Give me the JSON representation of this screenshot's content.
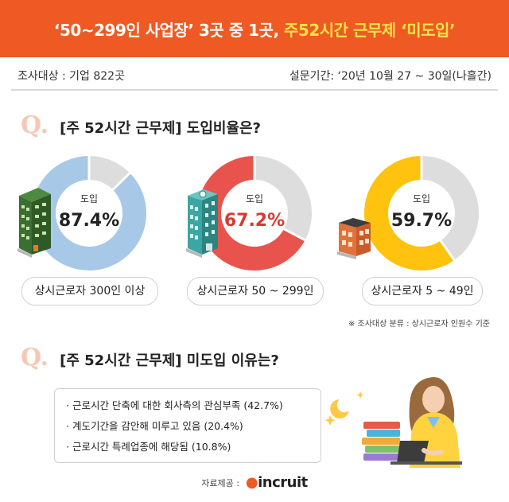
{
  "banner": {
    "title_part1": "‘50~299인 사업장’ 3곳 중 1곳, ",
    "title_part2": "주52시간 근무제 ‘미도입’"
  },
  "meta": {
    "target": "조사대상 : 기업 822곳",
    "period": "설문기간: ‘20년 10월 27 ~ 30일(나흘간)"
  },
  "q1": {
    "mark": "Q.",
    "text": "[주 52시간 근무제] 도입비율은?"
  },
  "q2": {
    "mark": "Q.",
    "text": "[주 52시간 근무제] 미도입 이유는?"
  },
  "chart_data": {
    "type": "pie",
    "variant": "donut",
    "center_label": "도입",
    "series": [
      {
        "category": "상시근로자 300인 이상",
        "value": 87.4,
        "value_label": "87.4%",
        "color": "#a8c8e8",
        "value_color": "#222222"
      },
      {
        "category": "상시근로자 50 ~ 299인",
        "value": 67.2,
        "value_label": "67.2%",
        "color": "#e9534d",
        "value_color": "#d63a32"
      },
      {
        "category": "상시근로자 5 ~ 49인",
        "value": 59.7,
        "value_label": "59.7%",
        "color": "#ffc20e",
        "value_color": "#222222"
      }
    ],
    "remainder_color": "#dddddd"
  },
  "note": "※ 조사대상 분류 : 상시근로자 인원수 기준",
  "reasons": [
    "· 근로시간 단축에 대한 회사측의 관심부족 (42.7%)",
    "· 계도기간을 감안해 미루고 있음 (20.4%)",
    "· 근로시간 특례업종에 해당됨 (10.8%)"
  ],
  "source": {
    "label": "자료제공 :",
    "logo": "incruit"
  }
}
